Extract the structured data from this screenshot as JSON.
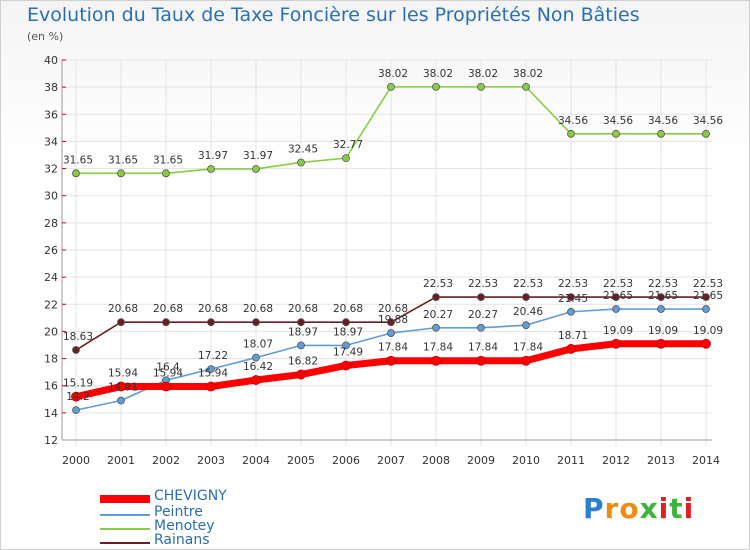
{
  "title": "Evolution du Taux de Taxe Foncière sur les Propriétés Non Bâties",
  "unit_label": "(en %)",
  "logo_text": "Proxiti",
  "chart_data": {
    "type": "line",
    "title": "Evolution du Taux de Taxe Foncière sur les Propriétés Non Bâties",
    "ylabel": "(en %)",
    "xlabel": "",
    "categories": [
      "2000",
      "2001",
      "2002",
      "2003",
      "2004",
      "2005",
      "2006",
      "2007",
      "2008",
      "2009",
      "2010",
      "2011",
      "2012",
      "2013",
      "2014"
    ],
    "ylim": [
      12,
      40
    ],
    "yticks": [
      12,
      14,
      16,
      18,
      20,
      22,
      24,
      26,
      28,
      30,
      32,
      34,
      36,
      38,
      40
    ],
    "grid": true,
    "legend_position": "bottom-left",
    "series": [
      {
        "name": "CHEVIGNY",
        "color": "#ff0000",
        "values": [
          15.19,
          15.94,
          15.94,
          15.94,
          16.42,
          16.82,
          17.49,
          17.84,
          17.84,
          17.84,
          17.84,
          18.71,
          19.09,
          19.09,
          19.09
        ],
        "labels": [
          "15.19",
          "15.94",
          "15.94",
          "15.94",
          "16.42",
          "16.82",
          "17.49",
          "17.84",
          "17.84",
          "17.84",
          "17.84",
          "18.71",
          "19.09",
          "19.09",
          "19.09"
        ]
      },
      {
        "name": "Peintre",
        "color": "#5f9dd6",
        "values": [
          14.2,
          14.91,
          16.4,
          17.22,
          18.07,
          18.97,
          18.97,
          19.88,
          20.27,
          20.27,
          20.46,
          21.45,
          21.65,
          21.65,
          21.65
        ],
        "labels": [
          "14.2",
          "14.91",
          "16.4",
          "17.22",
          "18.07",
          "18.97",
          "18.97",
          "19.88",
          "20.27",
          "20.27",
          "20.46",
          "21.45",
          "21.65",
          "21.65",
          "21.65"
        ]
      },
      {
        "name": "Menotey",
        "color": "#88cc44",
        "values": [
          31.65,
          31.65,
          31.65,
          31.97,
          31.97,
          32.45,
          32.77,
          38.02,
          38.02,
          38.02,
          38.02,
          34.56,
          34.56,
          34.56,
          34.56
        ],
        "labels": [
          "31.65",
          "31.65",
          "31.65",
          "31.97",
          "31.97",
          "32.45",
          "32.77",
          "38.02",
          "38.02",
          "38.02",
          "38.02",
          "34.56",
          "34.56",
          "34.56",
          "34.56"
        ]
      },
      {
        "name": "Rainans",
        "color": "#6b1e22",
        "values": [
          18.63,
          20.68,
          20.68,
          20.68,
          20.68,
          20.68,
          20.68,
          20.68,
          22.53,
          22.53,
          22.53,
          22.53,
          22.53,
          22.53,
          22.53
        ],
        "labels": [
          "18.63",
          "20.68",
          "20.68",
          "20.68",
          "20.68",
          "20.68",
          "20.68",
          "20.68",
          "22.53",
          "22.53",
          "22.53",
          "22.53",
          "22.53",
          "22.53",
          "22.53"
        ]
      }
    ]
  },
  "colors": {
    "title": "#2a6fb0",
    "grid": "#e3e3e3",
    "logo_p": "#2a7fd0",
    "logo_r": "#f08a10",
    "logo_o": "#f08a10",
    "logo_x": "#3cb43c",
    "logo_i": "#e02020"
  }
}
